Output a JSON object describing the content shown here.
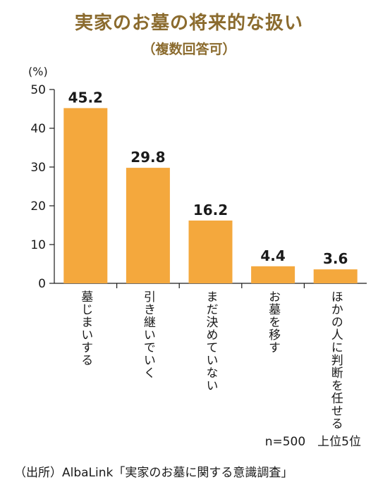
{
  "chart_data": {
    "type": "bar",
    "title": "実家のお墓の将来的な扱い",
    "subtitle": "（複数回答可）",
    "ylabel": "(%)",
    "categories": [
      "墓じまいする",
      "引き継いでいく",
      "まだ決めていない",
      "お墓を移す",
      "ほかの人に判断を任せる"
    ],
    "values": [
      45.2,
      29.8,
      16.2,
      4.4,
      3.6
    ],
    "value_labels": [
      "45.2",
      "29.8",
      "16.2",
      "4.4",
      "3.6"
    ],
    "yticks": [
      0,
      10,
      20,
      30,
      40,
      50
    ],
    "ylim": [
      0,
      50
    ],
    "grid": false,
    "bar_color": "#f4a83d",
    "title_color": "#8b6b2e"
  },
  "note": "n=500　上位5位",
  "source": "（出所）AlbaLink「実家のお墓に関する意識調査」"
}
